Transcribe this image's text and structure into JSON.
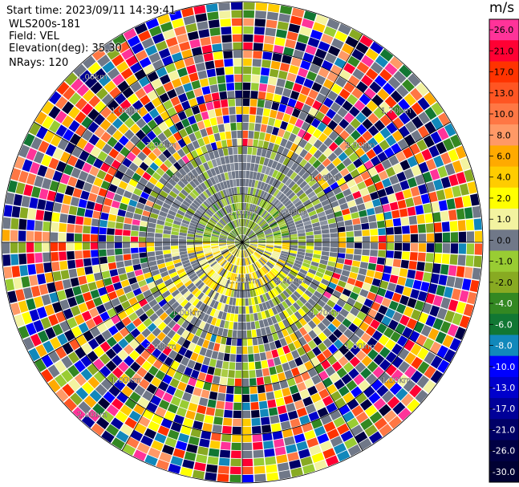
{
  "header": {
    "start_time": "Start time: 2023/09/11 14:39:41",
    "instrument": "WLS200s-181",
    "field": "Field: VEL",
    "elevation": "Elevation(deg): 35.30",
    "nrays": "NRays: 120"
  },
  "colorbar": {
    "unit": "m/s",
    "levels": [
      {
        "label": "26.0",
        "color": "#ff3399"
      },
      {
        "label": "21.0",
        "color": "#ff0033"
      },
      {
        "label": "17.0",
        "color": "#ff3300"
      },
      {
        "label": "13.0",
        "color": "#ff5522"
      },
      {
        "label": "10.0",
        "color": "#ff7744"
      },
      {
        "label": "8.0",
        "color": "#ff9966"
      },
      {
        "label": "6.0",
        "color": "#ffaa00"
      },
      {
        "label": "4.0",
        "color": "#ffcc00"
      },
      {
        "label": "2.0",
        "color": "#ffff00"
      },
      {
        "label": "1.0",
        "color": "#f3f3a0"
      },
      {
        "label": "0.0",
        "color": "#707888"
      },
      {
        "label": "-1.0",
        "color": "#99cc33"
      },
      {
        "label": "-2.0",
        "color": "#88aa22"
      },
      {
        "label": "-4.0",
        "color": "#338822"
      },
      {
        "label": "-6.0",
        "color": "#117733"
      },
      {
        "label": "-8.0",
        "color": "#1188bb"
      },
      {
        "label": "-10.0",
        "color": "#0000ff"
      },
      {
        "label": "-13.0",
        "color": "#0000cc"
      },
      {
        "label": "-17.0",
        "color": "#000099"
      },
      {
        "label": "-21.0",
        "color": "#000066"
      },
      {
        "label": "-26.0",
        "color": "#000044"
      },
      {
        "label": "-30.0",
        "color": "#000033"
      }
    ]
  },
  "chart_data": {
    "type": "heatmap",
    "projection": "polar (PPI radar)",
    "field": "VEL",
    "elevation_deg": 35.3,
    "n_rays": 120,
    "range_ring_labels_km": [
      "1.00km",
      "1.70km",
      "2.00km",
      "2.90km",
      "2.00km",
      "1.00km",
      "1.00km",
      "1.70km",
      "2.00km",
      "2.90km",
      "2.00km",
      "1.00km",
      "1.00km",
      "1.70km",
      "1.00km",
      "1.00km",
      "1.00km",
      "2.00km",
      "2.00km",
      "2.00km"
    ],
    "pattern": {
      "inner_core": "mixed yellow / green / gray, mostly near 0 m/s",
      "green_arc": "northern half inner region, about -1 to -2 m/s",
      "yellow_arc": "southern half inner region and western ring, about +1 to +4 m/s",
      "outer_region": "noisy, full range -30 to 26 m/s"
    }
  }
}
